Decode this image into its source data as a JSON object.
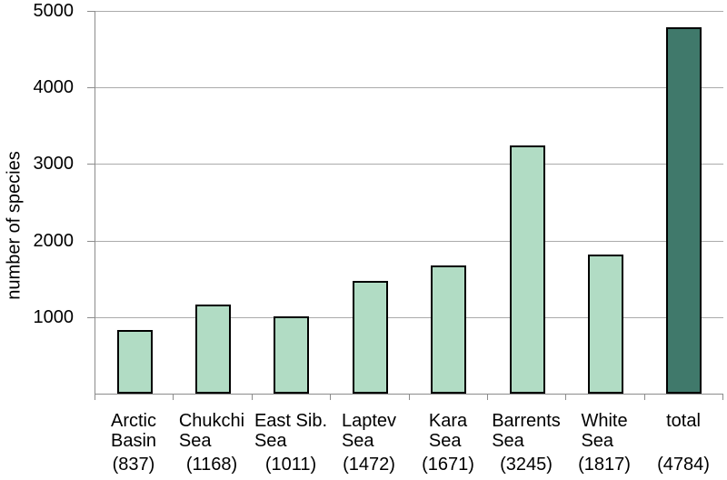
{
  "chart_data": {
    "type": "bar",
    "title": "",
    "xlabel": "",
    "ylabel": "number of species",
    "ylim": [
      0,
      5000
    ],
    "yticks": [
      1000,
      2000,
      3000,
      4000,
      5000
    ],
    "grid": true,
    "legend": false,
    "categories": [
      "Arctic\nBasin",
      "Chukchi\nSea",
      "East Sib.\nSea",
      "Laptev\nSea",
      "Kara\nSea",
      "Barrents\nSea",
      "White\nSea",
      "total"
    ],
    "values": [
      837,
      1168,
      1011,
      1472,
      1671,
      3245,
      1817,
      4784
    ],
    "value_labels": [
      "(837)",
      "(1168)",
      "(1011)",
      "(1472)",
      "(1671)",
      "(3245)",
      "(1817)",
      "(4784)"
    ],
    "bar_colors": [
      "#b1dcc4",
      "#b1dcc4",
      "#b1dcc4",
      "#b1dcc4",
      "#b1dcc4",
      "#b1dcc4",
      "#b1dcc4",
      "#40796b"
    ],
    "colors": {
      "bar_border": "#000000",
      "gridline": "#ababab",
      "axis": "#8c8c8c",
      "text": "#000000"
    }
  }
}
